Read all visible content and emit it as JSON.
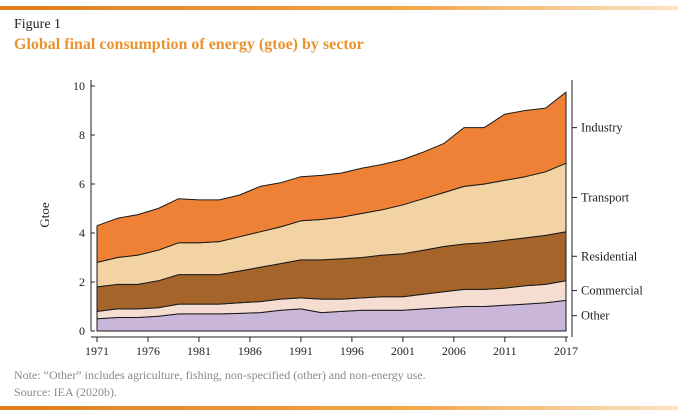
{
  "figure_label": "Figure 1",
  "title": "Global final consumption of energy (gtoe) by sector",
  "note": "Note: “Other” includes agriculture, fishing, non-specified (other) and non-energy use.",
  "source": "Source: IEA (2020b).",
  "colors": {
    "rule": "#e9922e",
    "title": "#e9922e",
    "Other": "#c9b6d8",
    "Commercial": "#f6ddd2",
    "Residential": "#a5652a",
    "Transport": "#f3d3a3",
    "Industry": "#ee8136"
  },
  "chart_data": {
    "type": "area",
    "stacked": true,
    "ylabel": "Gtoe",
    "xlabel": "",
    "ylim": [
      0,
      10
    ],
    "xlim": [
      1971,
      2017
    ],
    "y_ticks": [
      "0",
      "2",
      "4",
      "6",
      "8",
      "10"
    ],
    "x_ticks": [
      "1971",
      "1976",
      "1981",
      "1986",
      "1991",
      "1996",
      "2001",
      "2006",
      "2011",
      "2017"
    ],
    "x": [
      1971,
      1973,
      1975,
      1977,
      1979,
      1981,
      1983,
      1985,
      1987,
      1989,
      1991,
      1993,
      1995,
      1997,
      1999,
      2001,
      2003,
      2005,
      2007,
      2009,
      2011,
      2013,
      2015,
      2017
    ],
    "series": [
      {
        "name": "Other",
        "values": [
          0.5,
          0.55,
          0.55,
          0.6,
          0.7,
          0.7,
          0.7,
          0.72,
          0.75,
          0.85,
          0.9,
          0.75,
          0.8,
          0.85,
          0.85,
          0.85,
          0.9,
          0.95,
          1.0,
          1.0,
          1.05,
          1.1,
          1.15,
          1.25
        ]
      },
      {
        "name": "Commercial",
        "values": [
          0.3,
          0.35,
          0.35,
          0.35,
          0.4,
          0.4,
          0.4,
          0.43,
          0.45,
          0.45,
          0.45,
          0.55,
          0.5,
          0.5,
          0.55,
          0.55,
          0.6,
          0.65,
          0.7,
          0.7,
          0.7,
          0.75,
          0.75,
          0.8
        ]
      },
      {
        "name": "Residential",
        "values": [
          1.0,
          1.0,
          1.0,
          1.1,
          1.2,
          1.2,
          1.2,
          1.3,
          1.4,
          1.45,
          1.55,
          1.6,
          1.65,
          1.65,
          1.7,
          1.75,
          1.8,
          1.85,
          1.85,
          1.9,
          1.95,
          1.95,
          2.0,
          2.0
        ]
      },
      {
        "name": "Transport",
        "values": [
          1.0,
          1.1,
          1.2,
          1.25,
          1.3,
          1.3,
          1.35,
          1.4,
          1.45,
          1.5,
          1.6,
          1.65,
          1.7,
          1.8,
          1.85,
          2.0,
          2.1,
          2.2,
          2.35,
          2.4,
          2.45,
          2.5,
          2.6,
          2.8
        ]
      },
      {
        "name": "Industry",
        "values": [
          1.5,
          1.6,
          1.65,
          1.7,
          1.8,
          1.75,
          1.7,
          1.7,
          1.85,
          1.8,
          1.8,
          1.8,
          1.8,
          1.85,
          1.85,
          1.85,
          1.9,
          2.0,
          2.4,
          2.3,
          2.7,
          2.7,
          2.6,
          2.9
        ]
      }
    ]
  }
}
